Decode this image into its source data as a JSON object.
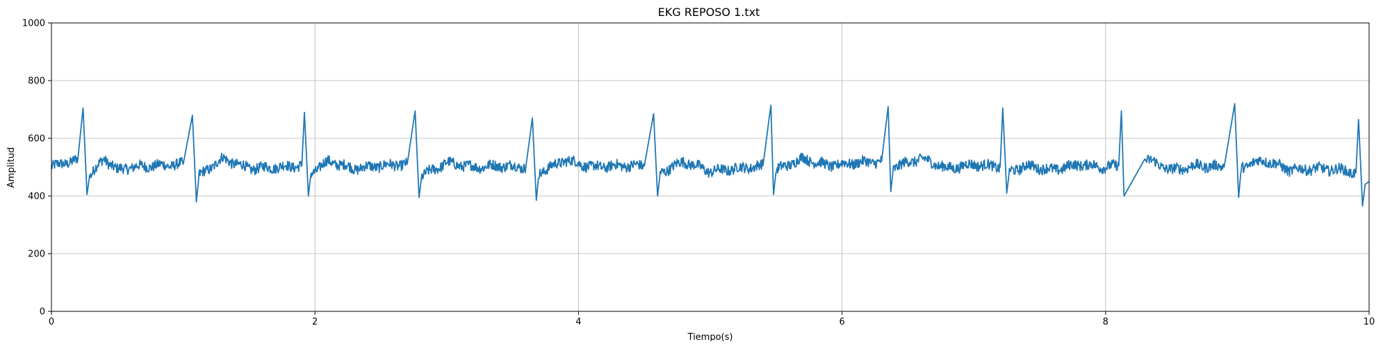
{
  "chart_data": {
    "type": "line",
    "title": "EKG REPOSO 1.txt",
    "xlabel": "Tiempo(s)",
    "ylabel": "Amplitud",
    "xlim": [
      0,
      10
    ],
    "ylim": [
      0,
      1000
    ],
    "xticks": [
      0,
      2,
      4,
      6,
      8,
      10
    ],
    "yticks": [
      0,
      200,
      400,
      600,
      800,
      1000
    ],
    "grid": true,
    "line_color": "#1f77b4",
    "series": [
      {
        "x": [
          0.0,
          0.1,
          0.2,
          0.24,
          0.27,
          0.29,
          0.4,
          0.5,
          0.6,
          0.8,
          1.0,
          1.07,
          1.1,
          1.12,
          1.3,
          1.5,
          1.7,
          1.9,
          1.92,
          1.95,
          1.97,
          2.1,
          2.3,
          2.5,
          2.7,
          2.76,
          2.79,
          2.81,
          3.0,
          3.2,
          3.4,
          3.6,
          3.65,
          3.68,
          3.7,
          3.9,
          4.1,
          4.3,
          4.5,
          4.57,
          4.6,
          4.62,
          4.8,
          5.0,
          5.2,
          5.4,
          5.46,
          5.48,
          5.5,
          5.7,
          5.9,
          6.1,
          6.3,
          6.35,
          6.37,
          6.39,
          6.6,
          6.8,
          7.0,
          7.2,
          7.22,
          7.25,
          7.27,
          7.4,
          7.6,
          7.8,
          8.0,
          8.1,
          8.12,
          8.14,
          8.3,
          8.5,
          8.7,
          8.9,
          8.98,
          9.01,
          9.03,
          9.2,
          9.4,
          9.6,
          9.8,
          9.9,
          9.92,
          9.95,
          9.97,
          10.0
        ],
        "y": [
          500,
          515,
          525,
          705,
          405,
          470,
          530,
          490,
          500,
          505,
          510,
          680,
          380,
          470,
          530,
          495,
          500,
          505,
          690,
          400,
          480,
          520,
          495,
          505,
          510,
          695,
          395,
          470,
          515,
          500,
          505,
          500,
          670,
          385,
          480,
          525,
          500,
          505,
          505,
          685,
          400,
          480,
          520,
          485,
          495,
          505,
          715,
          405,
          490,
          530,
          505,
          515,
          520,
          710,
          415,
          500,
          530,
          495,
          510,
          500,
          705,
          410,
          485,
          505,
          490,
          510,
          500,
          505,
          695,
          400,
          530,
          490,
          505,
          500,
          720,
          395,
          500,
          525,
          490,
          495,
          490,
          480,
          665,
          365,
          440,
          450
        ]
      }
    ]
  }
}
